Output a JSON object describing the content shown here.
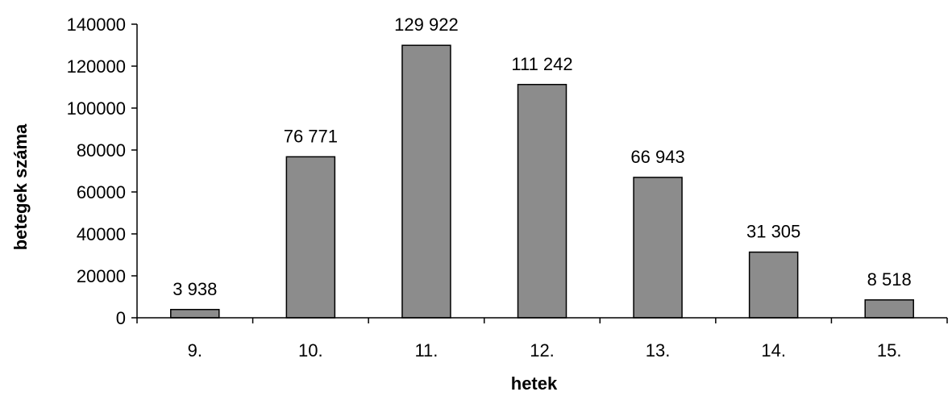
{
  "chart_data": {
    "type": "bar",
    "categories": [
      "9.",
      "10.",
      "11.",
      "12.",
      "13.",
      "14.",
      "15."
    ],
    "values": [
      3938,
      76771,
      129922,
      111242,
      66943,
      31305,
      8518
    ],
    "data_labels": [
      "3 938",
      "76 771",
      "129 922",
      "111 242",
      "66 943",
      "31 305",
      "8 518"
    ],
    "xlabel": "hetek",
    "ylabel": "betegek száma",
    "ylim": [
      0,
      140000
    ],
    "yticks": [
      0,
      20000,
      40000,
      60000,
      80000,
      100000,
      120000,
      140000
    ],
    "ytick_labels": [
      "0",
      "20000",
      "40000",
      "60000",
      "80000",
      "100000",
      "120000",
      "140000"
    ],
    "grid": false,
    "legend": "none",
    "colors": {
      "bar_fill": "#8c8c8c",
      "bar_stroke": "#000000",
      "axis": "#000000"
    }
  }
}
